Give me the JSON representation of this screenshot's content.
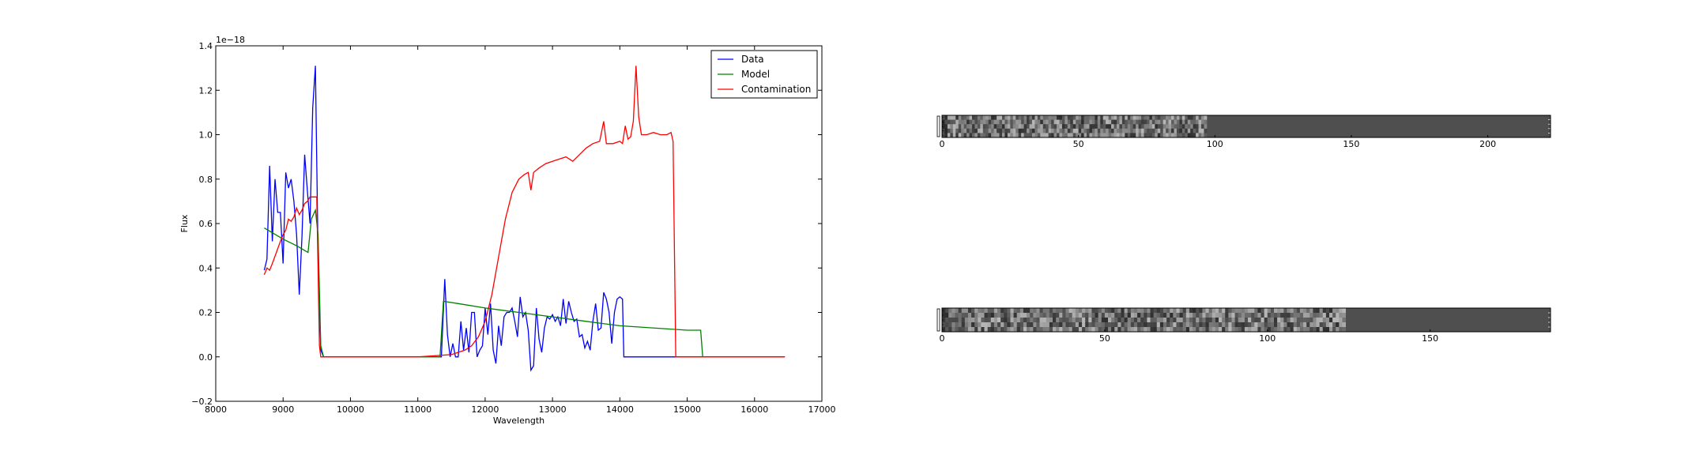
{
  "chart_data": [
    {
      "type": "line",
      "title": "",
      "xlabel": "Wavelength",
      "ylabel": "Flux",
      "xlim": [
        8000,
        17000
      ],
      "ylim": [
        -0.2,
        1.4
      ],
      "y_scale_label": "1e−18",
      "xticks": [
        8000,
        9000,
        10000,
        11000,
        12000,
        13000,
        14000,
        15000,
        16000,
        17000
      ],
      "xtick_labels": [
        "8000",
        "9000",
        "10000",
        "11000",
        "12000",
        "13000",
        "14000",
        "15000",
        "16000",
        "17000"
      ],
      "yticks": [
        -0.2,
        0.0,
        0.2,
        0.4,
        0.6,
        0.8,
        1.0,
        1.2,
        1.4
      ],
      "ytick_labels": [
        "−0.2",
        "0.0",
        "0.2",
        "0.4",
        "0.6",
        "0.8",
        "1.0",
        "1.2",
        "1.4"
      ],
      "grid": false,
      "legend": "top-right",
      "series": [
        {
          "name": "Data",
          "color": "#0000ff",
          "points": [
            [
              8720,
              0.39
            ],
            [
              8760,
              0.44
            ],
            [
              8800,
              0.86
            ],
            [
              8840,
              0.52
            ],
            [
              8880,
              0.8
            ],
            [
              8920,
              0.65
            ],
            [
              8960,
              0.65
            ],
            [
              9000,
              0.42
            ],
            [
              9040,
              0.83
            ],
            [
              9080,
              0.76
            ],
            [
              9120,
              0.8
            ],
            [
              9160,
              0.7
            ],
            [
              9200,
              0.55
            ],
            [
              9240,
              0.28
            ],
            [
              9280,
              0.54
            ],
            [
              9320,
              0.91
            ],
            [
              9360,
              0.75
            ],
            [
              9400,
              0.6
            ],
            [
              9440,
              1.12
            ],
            [
              9480,
              1.31
            ],
            [
              9520,
              0.45
            ],
            [
              9560,
              0.03
            ],
            [
              9600,
              0.0
            ],
            [
              10000,
              0.0
            ],
            [
              11000,
              0.0
            ],
            [
              11350,
              0.0
            ],
            [
              11400,
              0.35
            ],
            [
              11440,
              0.1
            ],
            [
              11480,
              0.0
            ],
            [
              11520,
              0.06
            ],
            [
              11560,
              0.0
            ],
            [
              11600,
              0.0
            ],
            [
              11640,
              0.16
            ],
            [
              11680,
              0.03
            ],
            [
              11720,
              0.13
            ],
            [
              11760,
              0.02
            ],
            [
              11800,
              0.2
            ],
            [
              11840,
              0.2
            ],
            [
              11880,
              0.0
            ],
            [
              11920,
              0.03
            ],
            [
              11960,
              0.05
            ],
            [
              12000,
              0.22
            ],
            [
              12040,
              0.1
            ],
            [
              12080,
              0.24
            ],
            [
              12120,
              0.03
            ],
            [
              12160,
              -0.03
            ],
            [
              12200,
              0.14
            ],
            [
              12240,
              0.05
            ],
            [
              12280,
              0.18
            ],
            [
              12320,
              0.2
            ],
            [
              12360,
              0.2
            ],
            [
              12400,
              0.22
            ],
            [
              12440,
              0.16
            ],
            [
              12480,
              0.09
            ],
            [
              12520,
              0.27
            ],
            [
              12560,
              0.18
            ],
            [
              12600,
              0.2
            ],
            [
              12640,
              0.12
            ],
            [
              12680,
              -0.06
            ],
            [
              12720,
              -0.04
            ],
            [
              12760,
              0.22
            ],
            [
              12800,
              0.08
            ],
            [
              12840,
              0.02
            ],
            [
              12880,
              0.13
            ],
            [
              12920,
              0.18
            ],
            [
              12960,
              0.17
            ],
            [
              13000,
              0.19
            ],
            [
              13040,
              0.16
            ],
            [
              13080,
              0.18
            ],
            [
              13120,
              0.14
            ],
            [
              13160,
              0.26
            ],
            [
              13200,
              0.15
            ],
            [
              13240,
              0.25
            ],
            [
              13280,
              0.2
            ],
            [
              13320,
              0.16
            ],
            [
              13360,
              0.17
            ],
            [
              13400,
              0.09
            ],
            [
              13440,
              0.1
            ],
            [
              13480,
              0.04
            ],
            [
              13520,
              0.07
            ],
            [
              13560,
              0.03
            ],
            [
              13600,
              0.16
            ],
            [
              13640,
              0.24
            ],
            [
              13680,
              0.12
            ],
            [
              13720,
              0.13
            ],
            [
              13760,
              0.29
            ],
            [
              13800,
              0.26
            ],
            [
              13840,
              0.2
            ],
            [
              13880,
              0.06
            ],
            [
              13920,
              0.2
            ],
            [
              13960,
              0.26
            ],
            [
              14000,
              0.27
            ],
            [
              14040,
              0.26
            ],
            [
              14060,
              0.0
            ],
            [
              14160,
              0.0
            ],
            [
              16450,
              0.0
            ]
          ]
        },
        {
          "name": "Model",
          "color": "#008000",
          "points": [
            [
              8720,
              0.58
            ],
            [
              9000,
              0.53
            ],
            [
              9200,
              0.5
            ],
            [
              9370,
              0.47
            ],
            [
              9420,
              0.62
            ],
            [
              9480,
              0.66
            ],
            [
              9520,
              0.55
            ],
            [
              9560,
              0.05
            ],
            [
              9600,
              0.0
            ],
            [
              11330,
              0.0
            ],
            [
              11380,
              0.25
            ],
            [
              11600,
              0.24
            ],
            [
              12000,
              0.22
            ],
            [
              12500,
              0.2
            ],
            [
              13000,
              0.18
            ],
            [
              13500,
              0.16
            ],
            [
              14000,
              0.14
            ],
            [
              15000,
              0.12
            ],
            [
              15200,
              0.12
            ],
            [
              15230,
              0.0
            ],
            [
              16450,
              0.0
            ]
          ]
        },
        {
          "name": "Contamination",
          "color": "#ff0000",
          "points": [
            [
              8720,
              0.37
            ],
            [
              8760,
              0.4
            ],
            [
              8800,
              0.39
            ],
            [
              8840,
              0.42
            ],
            [
              8900,
              0.47
            ],
            [
              8960,
              0.52
            ],
            [
              9000,
              0.55
            ],
            [
              9040,
              0.57
            ],
            [
              9080,
              0.62
            ],
            [
              9120,
              0.61
            ],
            [
              9160,
              0.63
            ],
            [
              9200,
              0.67
            ],
            [
              9240,
              0.64
            ],
            [
              9280,
              0.66
            ],
            [
              9320,
              0.69
            ],
            [
              9360,
              0.7
            ],
            [
              9400,
              0.72
            ],
            [
              9440,
              0.72
            ],
            [
              9500,
              0.72
            ],
            [
              9540,
              0.05
            ],
            [
              9560,
              0.0
            ],
            [
              11000,
              0.0
            ],
            [
              11500,
              0.01
            ],
            [
              11700,
              0.03
            ],
            [
              11800,
              0.05
            ],
            [
              11900,
              0.09
            ],
            [
              12000,
              0.16
            ],
            [
              12100,
              0.28
            ],
            [
              12200,
              0.45
            ],
            [
              12300,
              0.62
            ],
            [
              12400,
              0.74
            ],
            [
              12500,
              0.8
            ],
            [
              12580,
              0.82
            ],
            [
              12640,
              0.83
            ],
            [
              12680,
              0.75
            ],
            [
              12720,
              0.83
            ],
            [
              12800,
              0.85
            ],
            [
              12900,
              0.87
            ],
            [
              13000,
              0.88
            ],
            [
              13100,
              0.89
            ],
            [
              13200,
              0.9
            ],
            [
              13300,
              0.88
            ],
            [
              13400,
              0.91
            ],
            [
              13500,
              0.94
            ],
            [
              13600,
              0.96
            ],
            [
              13700,
              0.97
            ],
            [
              13760,
              1.06
            ],
            [
              13800,
              0.96
            ],
            [
              13900,
              0.96
            ],
            [
              14000,
              0.97
            ],
            [
              14040,
              0.96
            ],
            [
              14080,
              1.04
            ],
            [
              14120,
              0.98
            ],
            [
              14160,
              0.99
            ],
            [
              14200,
              1.06
            ],
            [
              14240,
              1.31
            ],
            [
              14280,
              1.08
            ],
            [
              14320,
              1.0
            ],
            [
              14400,
              1.0
            ],
            [
              14500,
              1.01
            ],
            [
              14600,
              1.0
            ],
            [
              14700,
              1.0
            ],
            [
              14760,
              1.01
            ],
            [
              14790,
              0.97
            ],
            [
              14830,
              0.0
            ],
            [
              16450,
              0.0
            ]
          ]
        }
      ]
    },
    {
      "type": "heatmap",
      "title": "",
      "xticks": [
        0,
        50,
        100,
        150,
        200
      ],
      "xtick_labels": [
        "0",
        "50",
        "100",
        "150",
        "200"
      ],
      "xlim": [
        0,
        223
      ],
      "rows": 5,
      "data_extent": 97,
      "fill_value_color": "#4f4f4f"
    },
    {
      "type": "heatmap",
      "title": "",
      "xticks": [
        0,
        50,
        100,
        150
      ],
      "xtick_labels": [
        "0",
        "50",
        "100",
        "150"
      ],
      "xlim": [
        0,
        187
      ],
      "rows": 5,
      "data_extent": 124,
      "fill_value_color": "#4f4f4f"
    }
  ]
}
